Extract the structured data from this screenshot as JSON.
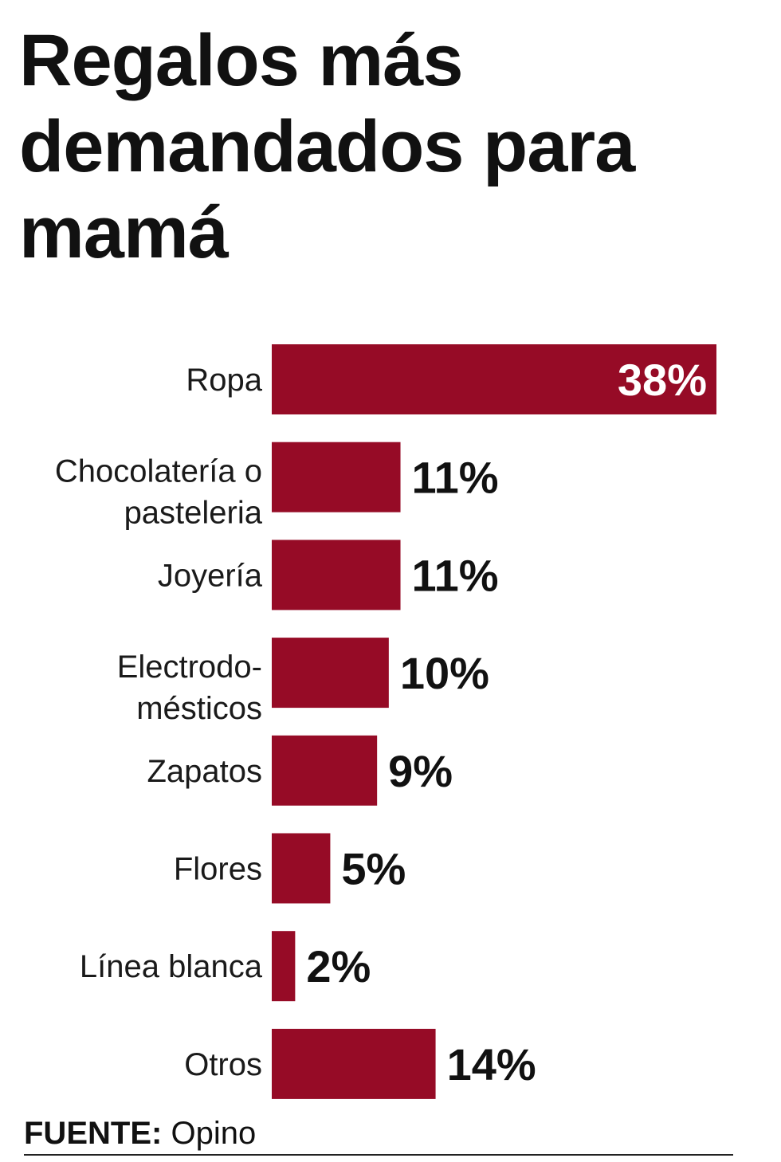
{
  "chart_data": {
    "type": "bar",
    "orientation": "horizontal",
    "title": "Regalos más demandados para mamá",
    "categories": [
      [
        "Ropa"
      ],
      [
        "Chocolatería o",
        "pasteleria"
      ],
      [
        "Joyería"
      ],
      [
        "Electrodo-",
        "mésticos"
      ],
      [
        "Zapatos"
      ],
      [
        "Flores"
      ],
      [
        "Línea blanca"
      ],
      [
        "Otros"
      ]
    ],
    "values": [
      38,
      11,
      11,
      10,
      9,
      5,
      2,
      14
    ],
    "value_labels": [
      "38%",
      "11%",
      "11%",
      "10%",
      "9%",
      "5%",
      "2%",
      "14%"
    ],
    "unit": "%",
    "xlim": [
      0,
      38
    ],
    "bar_color": "#960b26",
    "grid": false,
    "legend": "none"
  },
  "source": {
    "label": "FUENTE:",
    "text": "Opino"
  }
}
